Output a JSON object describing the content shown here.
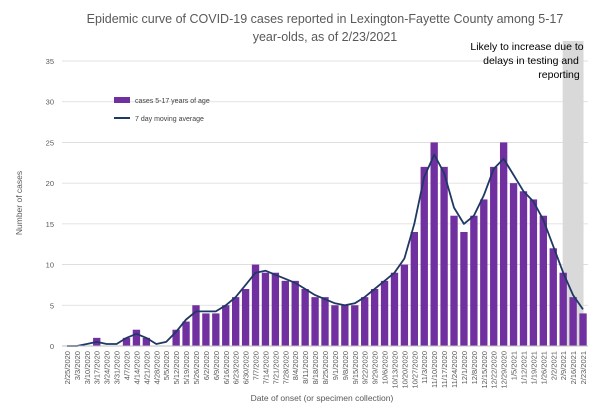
{
  "chart_data": {
    "type": "bar",
    "title_lines": [
      "Epidemic curve of COVID-19 cases reported in Lexington-Fayette County among 5-17",
      "year-olds, as of 2/23/2021"
    ],
    "xlabel": "Date of onset (or specimen collection)",
    "ylabel": "Number of cases",
    "ylim": [
      0,
      35
    ],
    "y_ticks": [
      0,
      5,
      10,
      15,
      20,
      25,
      30,
      35
    ],
    "x_tick_labels": [
      "2/25/2020",
      "3/3/2020",
      "3/10/2020",
      "3/17/2020",
      "3/24/2020",
      "3/31/2020",
      "4/7/2020",
      "4/14/2020",
      "4/21/2020",
      "4/28/2020",
      "5/5/2020",
      "5/12/2020",
      "5/19/2020",
      "5/26/2020",
      "6/2/2020",
      "6/9/2020",
      "6/16/2020",
      "6/23/2020",
      "6/30/2020",
      "7/7/2020",
      "7/14/2020",
      "7/21/2020",
      "7/28/2020",
      "8/4/2020",
      "8/11/2020",
      "8/18/2020",
      "8/25/2020",
      "9/1/2020",
      "9/8/2020",
      "9/15/2020",
      "9/22/2020",
      "9/29/2020",
      "10/6/2020",
      "10/13/2020",
      "10/20/2020",
      "10/27/2020",
      "11/3/2020",
      "11/10/2020",
      "11/17/2020",
      "11/24/2020",
      "12/1/2020",
      "12/8/2020",
      "12/15/2020",
      "12/22/2020",
      "12/29/2020",
      "1/5/2021",
      "1/12/2021",
      "1/19/2021",
      "1/26/2021",
      "2/2/2021",
      "2/9/2021",
      "2/16/2021",
      "2/23/2021"
    ],
    "grid": true,
    "legend_position": "upper-left",
    "series": [
      {
        "name": "cases 5-17 years of age",
        "kind": "bar",
        "color": "#7030A0"
      },
      {
        "name": "7 day moving average",
        "kind": "line",
        "color": "#1F3864"
      }
    ],
    "weekly_cases": [
      0,
      0,
      0,
      1,
      0,
      0,
      1,
      2,
      1,
      0,
      0,
      2,
      3,
      5,
      4,
      4,
      5,
      6,
      7,
      10,
      9,
      9,
      8,
      8,
      7,
      6,
      6,
      5,
      5,
      5,
      6,
      7,
      8,
      9,
      10,
      14,
      22,
      25,
      22,
      16,
      14,
      16,
      18,
      22,
      25,
      20,
      19,
      18,
      16,
      12,
      9,
      6,
      4
    ],
    "annotation": {
      "lines": [
        "Likely to increase due to",
        "delays in testing and",
        "reporting"
      ],
      "shade_from": "2/10/2021",
      "shade_to": "2/23/2021",
      "shade_color": "#D9D9D9"
    }
  }
}
